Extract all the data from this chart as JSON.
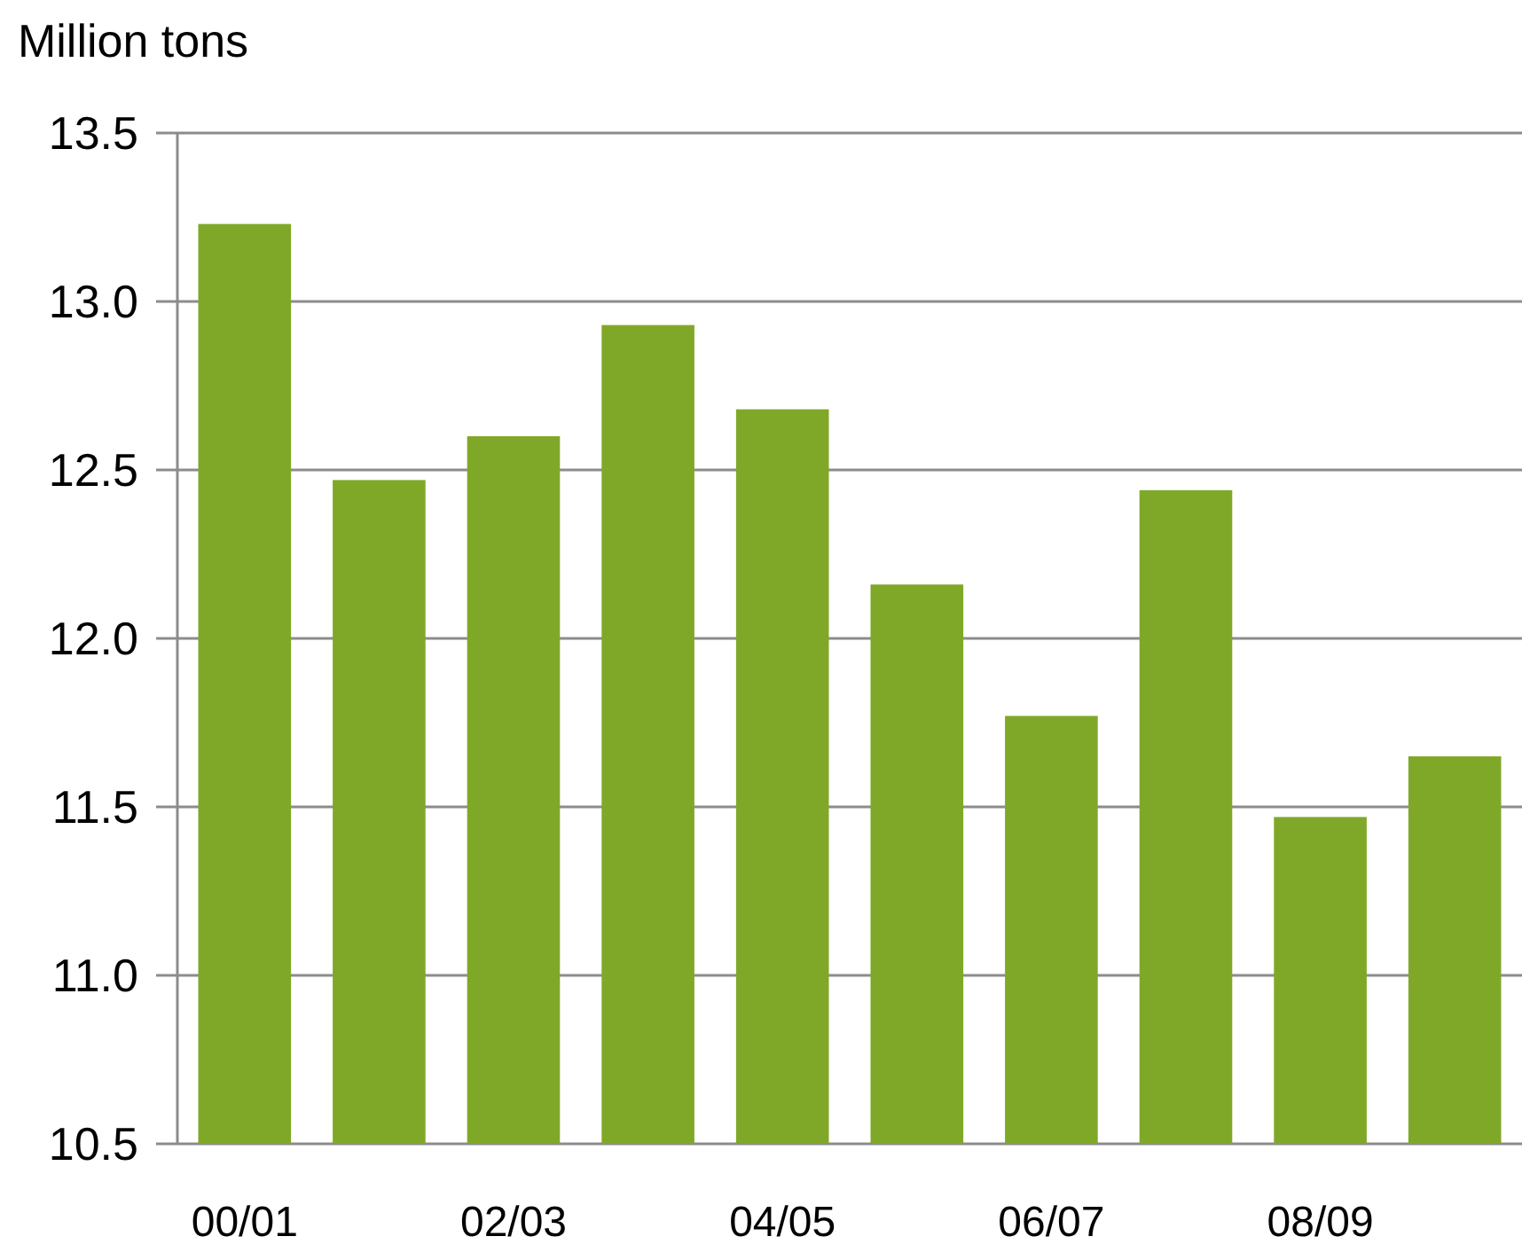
{
  "chart_data": {
    "type": "bar",
    "ylabel": "Million tons",
    "categories": [
      "00/01",
      null,
      "02/03",
      null,
      "04/05",
      null,
      "06/07",
      null,
      "08/09",
      null
    ],
    "values": [
      13.23,
      12.47,
      12.6,
      12.93,
      12.68,
      12.16,
      11.77,
      12.44,
      11.47,
      11.65
    ],
    "color": "#80a828",
    "ylim": [
      10.5,
      13.5
    ],
    "yticks": [
      10.5,
      {
        "value": 11,
        "label": "11.0"
      },
      11.5,
      {
        "value": 12,
        "label": "12.0"
      },
      12.5,
      {
        "value": 13,
        "label": "13.0"
      },
      13.5
    ],
    "grid": "y"
  }
}
